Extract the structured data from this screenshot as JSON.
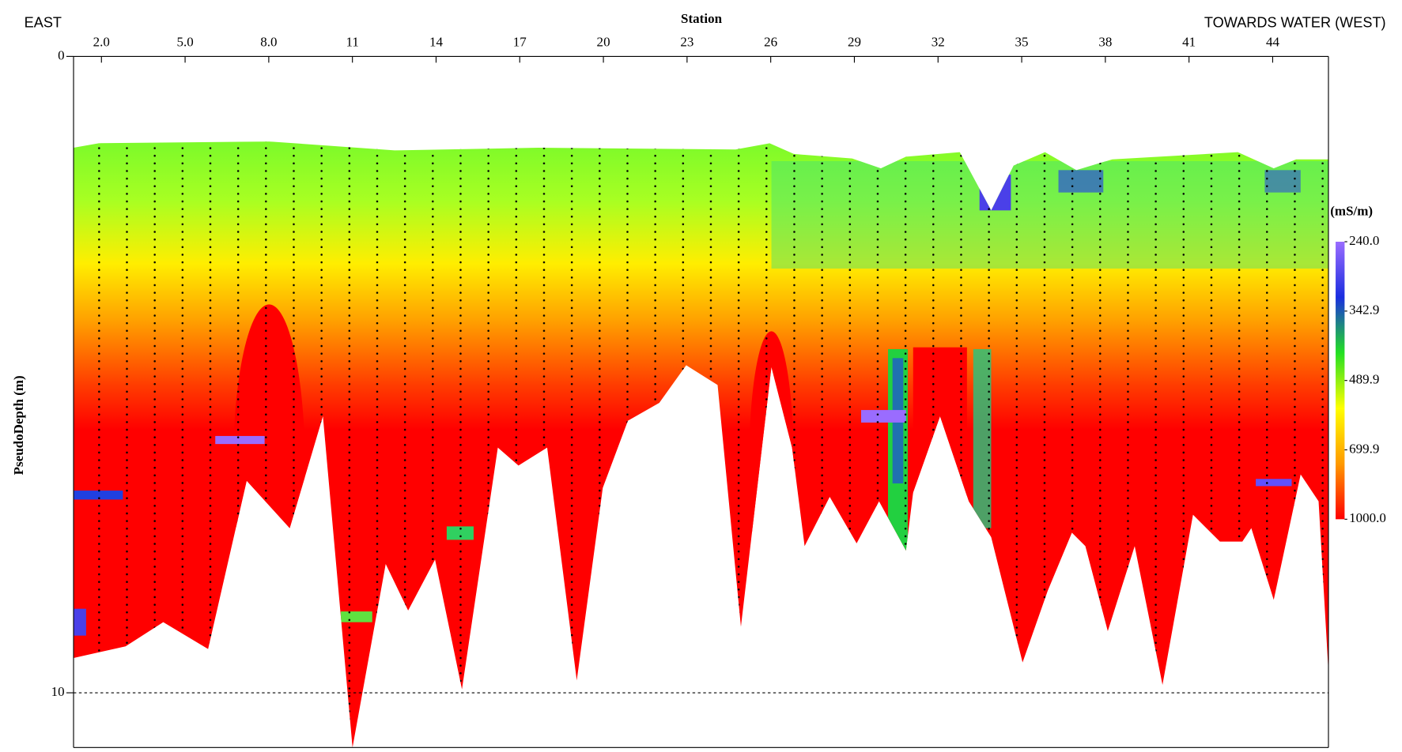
{
  "chart_data": {
    "type": "heatmap",
    "title_left": "EAST",
    "xlabel": "Station",
    "title_right": "TOWARDS WATER (WEST)",
    "ylabel": "PseudoDepth (m)",
    "xlim": [
      1,
      46
    ],
    "xticks": [
      {
        "value": 2,
        "label": "2.0"
      },
      {
        "value": 5,
        "label": "5.0"
      },
      {
        "value": 8,
        "label": "8.0"
      },
      11,
      14,
      17,
      20,
      23,
      26,
      29,
      32,
      35,
      38,
      41,
      44
    ],
    "ylim": [
      0,
      10.86
    ],
    "yticks": [
      0,
      10
    ],
    "colorbar": {
      "label": "(mS/m)",
      "log_scale": true,
      "lim": [
        240,
        1000
      ],
      "ticks": [
        {
          "value": 240,
          "label": "240.0"
        },
        {
          "value": 342.9,
          "label": "342.9"
        },
        {
          "value": 489.9,
          "label": "489.9"
        },
        {
          "value": 699.9,
          "label": "699.9"
        },
        {
          "value": 1000,
          "label": "1000.0"
        }
      ],
      "colors": [
        "#9a6cff",
        "#1a2ee0",
        "#22e022",
        "#ffff00",
        "#ff9a00",
        "#ff0000"
      ]
    }
  }
}
